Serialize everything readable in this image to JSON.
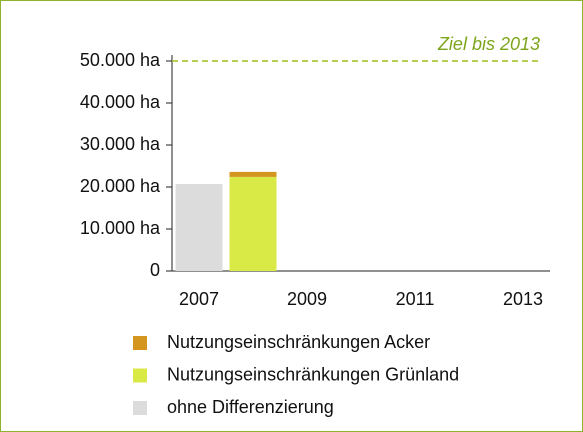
{
  "chart_data": {
    "type": "stacked_bar",
    "categories": [
      "2007",
      null,
      "2009",
      null,
      "2011",
      null,
      "2013"
    ],
    "series": [
      {
        "name": "Nutzungseinschränkungen Acker",
        "color": "#d4961f",
        "values": [
          null,
          1200,
          null,
          null,
          null,
          null,
          null
        ]
      },
      {
        "name": "Nutzungseinschränkungen Grünland",
        "color": "#d9ea47",
        "values": [
          null,
          22400,
          null,
          null,
          null,
          null,
          null
        ]
      },
      {
        "name": "ohne Differenzierung",
        "color": "#dcdcdc",
        "values": [
          20700,
          null,
          null,
          null,
          null,
          null,
          null
        ]
      }
    ],
    "ylim": [
      0,
      50000
    ],
    "yticks": [
      0,
      {
        "value": 10000,
        "label": "10.000 ha"
      },
      {
        "value": 20000,
        "label": "20.000 ha"
      },
      {
        "value": 30000,
        "label": "30.000 ha"
      },
      {
        "value": 40000,
        "label": "40.000 ha"
      },
      {
        "value": 50000,
        "label": "50.000 ha"
      }
    ],
    "target": {
      "value": 50000,
      "label": "Ziel bis 2013",
      "color": "#9dc11a"
    },
    "legend": "bottom"
  }
}
